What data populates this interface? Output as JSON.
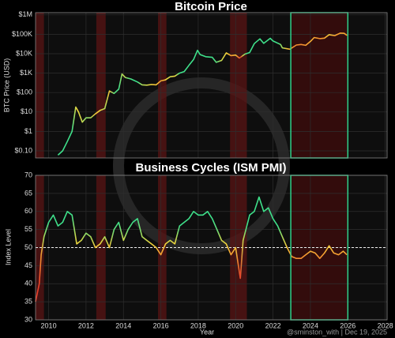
{
  "chart_data": [
    {
      "type": "line",
      "title": "Bitcoin Price",
      "ylabel": "BTC Price (USD)",
      "log_scale": true,
      "xlim": [
        2009.3,
        2028.1
      ],
      "xticks": [
        2010,
        2012,
        2014,
        2016,
        2018,
        2020,
        2022,
        2024,
        2026,
        2028
      ],
      "ylim": [
        0.043,
        1300000
      ],
      "yticks": [
        {
          "value": 0.1,
          "label": "$0.10"
        },
        {
          "value": 1,
          "label": "$1"
        },
        {
          "value": 10,
          "label": "$10"
        },
        {
          "value": 100,
          "label": "$100"
        },
        {
          "value": 1000,
          "label": "$1K"
        },
        {
          "value": 10000,
          "label": "$10K"
        },
        {
          "value": 100000,
          "label": "$100K"
        },
        {
          "value": 1000000,
          "label": "$1M"
        }
      ],
      "grid": true,
      "x": [
        2010.5,
        2010.75,
        2011.0,
        2011.25,
        2011.45,
        2011.6,
        2011.8,
        2012.0,
        2012.25,
        2012.5,
        2012.75,
        2013.0,
        2013.25,
        2013.5,
        2013.75,
        2013.92,
        2014.1,
        2014.4,
        2014.75,
        2015.0,
        2015.25,
        2015.5,
        2015.75,
        2016.0,
        2016.25,
        2016.5,
        2016.75,
        2017.0,
        2017.25,
        2017.5,
        2017.75,
        2017.96,
        2018.1,
        2018.4,
        2018.75,
        2018.96,
        2019.25,
        2019.5,
        2019.75,
        2020.0,
        2020.2,
        2020.5,
        2020.75,
        2021.0,
        2021.3,
        2021.5,
        2021.85,
        2022.0,
        2022.4,
        2022.5,
        2022.9,
        2023.25,
        2023.5,
        2023.75,
        2024.0,
        2024.2,
        2024.5,
        2024.75,
        2025.0,
        2025.3,
        2025.6,
        2025.8,
        2025.96
      ],
      "values": [
        0.06,
        0.1,
        0.3,
        1,
        18,
        10,
        3,
        5,
        5,
        8,
        12,
        15,
        120,
        90,
        150,
        900,
        600,
        500,
        350,
        250,
        240,
        260,
        250,
        400,
        450,
        650,
        700,
        1000,
        1200,
        2500,
        5000,
        15000,
        9000,
        7000,
        6500,
        3600,
        4500,
        11000,
        8000,
        8500,
        6000,
        9500,
        11500,
        33000,
        58000,
        34000,
        62000,
        45000,
        30000,
        20000,
        17000,
        28000,
        30000,
        27000,
        43000,
        68000,
        60000,
        63000,
        95000,
        85000,
        115000,
        112000,
        88000
      ],
      "shaded_regions": [
        {
          "start": 2009.3,
          "end": 2009.75
        },
        {
          "start": 2012.55,
          "end": 2013.05
        },
        {
          "start": 2015.85,
          "end": 2016.3
        },
        {
          "start": 2019.7,
          "end": 2020.6
        }
      ],
      "highlight": {
        "start": 2022.95,
        "end": 2026.0,
        "color": "#2fd08a"
      }
    },
    {
      "type": "line",
      "title": "Business Cycles (ISM PMI)",
      "ylabel": "Index Level",
      "xlabel": "Year",
      "xlim": [
        2009.3,
        2028.1
      ],
      "xticks": [
        2010,
        2012,
        2014,
        2016,
        2018,
        2020,
        2022,
        2024,
        2026,
        2028
      ],
      "ylim": [
        30,
        70
      ],
      "yticks": [
        30,
        35,
        40,
        45,
        50,
        55,
        60,
        65,
        70
      ],
      "grid": true,
      "reference_line": 50,
      "x": [
        2009.3,
        2009.5,
        2009.6,
        2009.75,
        2010.0,
        2010.25,
        2010.5,
        2010.75,
        2011.0,
        2011.25,
        2011.5,
        2011.75,
        2012.0,
        2012.25,
        2012.5,
        2012.75,
        2013.0,
        2013.25,
        2013.5,
        2013.75,
        2014.0,
        2014.25,
        2014.5,
        2014.75,
        2015.0,
        2015.25,
        2015.5,
        2015.75,
        2016.0,
        2016.25,
        2016.5,
        2016.75,
        2017.0,
        2017.25,
        2017.5,
        2017.75,
        2018.0,
        2018.25,
        2018.5,
        2018.75,
        2019.0,
        2019.25,
        2019.5,
        2019.75,
        2020.0,
        2020.25,
        2020.4,
        2020.6,
        2020.75,
        2021.0,
        2021.25,
        2021.5,
        2021.75,
        2022.0,
        2022.25,
        2022.5,
        2022.75,
        2023.0,
        2023.25,
        2023.5,
        2023.75,
        2024.0,
        2024.25,
        2024.5,
        2024.75,
        2025.0,
        2025.25,
        2025.5,
        2025.75,
        2025.95
      ],
      "values": [
        35,
        40,
        48,
        53,
        57,
        59,
        56,
        57,
        60,
        59,
        51,
        52,
        54,
        53,
        50,
        51,
        53,
        50,
        55,
        57,
        52,
        55,
        57,
        58,
        53,
        52,
        51,
        50,
        48,
        51,
        52,
        51,
        56,
        57,
        58,
        60,
        59,
        59,
        60,
        58,
        55,
        52,
        51,
        48,
        50,
        41.5,
        52,
        56,
        59,
        60,
        64,
        60,
        61,
        58,
        56,
        53,
        50,
        47.5,
        47,
        47,
        48,
        49,
        48.5,
        47,
        48.5,
        50.5,
        48.5,
        48,
        49,
        48
      ],
      "colormap": [
        {
          "value": 42,
          "color": "#e8402a"
        },
        {
          "value": 48,
          "color": "#f59a30"
        },
        {
          "value": 51,
          "color": "#f2d43a"
        },
        {
          "value": 56,
          "color": "#3ee08a"
        }
      ],
      "shaded_regions": [
        {
          "start": 2009.3,
          "end": 2009.75
        },
        {
          "start": 2012.55,
          "end": 2013.05
        },
        {
          "start": 2015.85,
          "end": 2016.3
        },
        {
          "start": 2019.7,
          "end": 2020.6
        }
      ],
      "highlight": {
        "start": 2022.95,
        "end": 2026.0,
        "color": "#2fd08a"
      },
      "credit": "@sminston_with  |  Dec 19, 2025"
    }
  ]
}
